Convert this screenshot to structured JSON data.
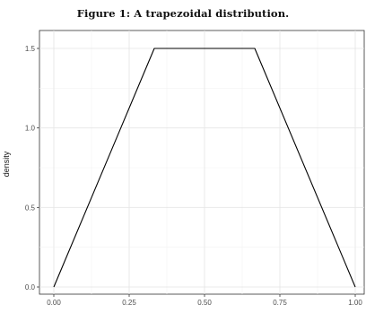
{
  "figure": {
    "caption": "Figure 1: A trapezoidal distribution."
  },
  "chart_data": {
    "type": "line",
    "title": "",
    "xlabel": "",
    "ylabel": "density",
    "xlim": [
      0,
      1
    ],
    "ylim": [
      0,
      1.5
    ],
    "x_ticks": [
      0,
      0.25,
      0.5,
      0.75,
      1.0
    ],
    "x_tick_labels": [
      "0.00",
      "0.25",
      "0.50",
      "0.75",
      "1.00"
    ],
    "y_ticks": [
      0,
      0.5,
      1.0,
      1.5
    ],
    "y_tick_labels": [
      "0.0",
      "0.5",
      "1.0",
      "1.5"
    ],
    "grid": true,
    "legend": "none",
    "series": [
      {
        "x": [
          0,
          0.3333,
          0.6667,
          1.0
        ],
        "y": [
          0,
          1.5,
          1.5,
          0
        ],
        "color": "#000000"
      }
    ]
  }
}
